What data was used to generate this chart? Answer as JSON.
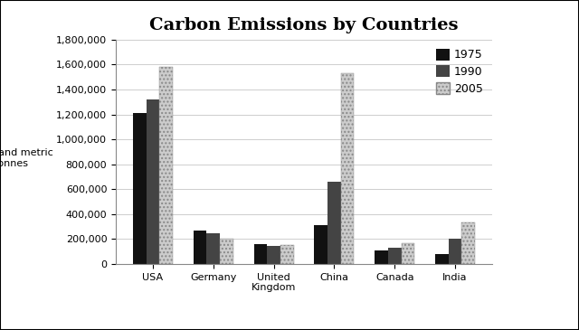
{
  "title": "Carbon Emissions by Countries",
  "ylabel": "thousand metric\ntonnes",
  "categories": [
    "USA",
    "Germany",
    "United\nKingdom",
    "China",
    "Canada",
    "India"
  ],
  "years": [
    "1975",
    "1990",
    "2005"
  ],
  "values": {
    "1975": [
      1210000,
      270000,
      160000,
      310000,
      110000,
      80000
    ],
    "1990": [
      1320000,
      250000,
      145000,
      660000,
      130000,
      200000
    ],
    "2005": [
      1580000,
      205000,
      150000,
      1530000,
      165000,
      330000
    ]
  },
  "bar_colors_1975": "#111111",
  "bar_colors_1990": "#444444",
  "bar_colors_2005": "#cccccc",
  "ylim": [
    0,
    1800000
  ],
  "yticks": [
    0,
    200000,
    400000,
    600000,
    800000,
    1000000,
    1200000,
    1400000,
    1600000,
    1800000
  ],
  "ytick_labels": [
    "0",
    "200,000",
    "400,000",
    "600,000",
    "800,000",
    "1,000,000",
    "1,200,000",
    "1,400,000",
    "1,600,000",
    "1,800,000"
  ],
  "background_color": "#ffffff",
  "grid_color": "#bbbbbb",
  "title_fontsize": 14,
  "axis_fontsize": 8,
  "legend_fontsize": 9,
  "bar_width": 0.22,
  "figure_border_color": "#000000"
}
